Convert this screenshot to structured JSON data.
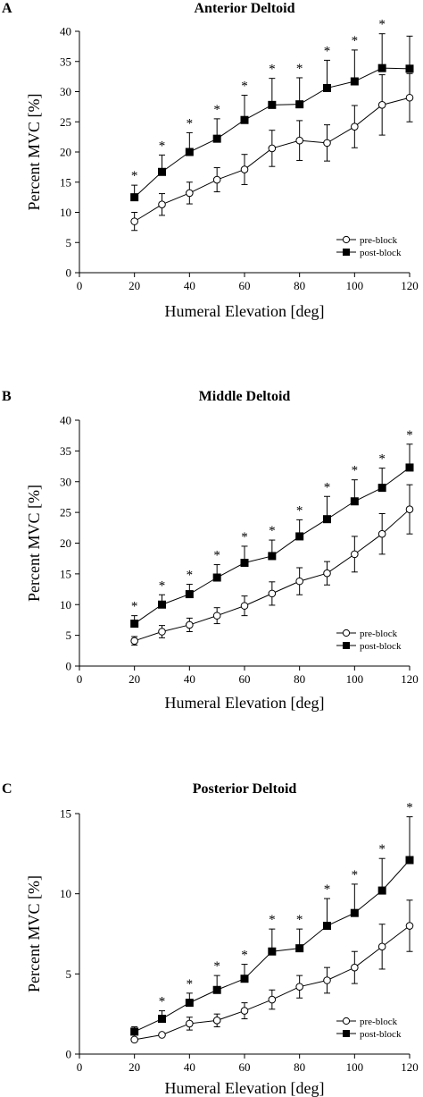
{
  "chart_data": [
    {
      "type": "line",
      "panel_label": "A",
      "title": "Anterior Deltoid",
      "xlabel": "Humeral Elevation [deg]",
      "ylabel": "Percent MVC [%]",
      "xlim": [
        0,
        120
      ],
      "ylim": [
        0,
        40
      ],
      "xticks": [
        0,
        20,
        40,
        60,
        80,
        100,
        120
      ],
      "yticks": [
        0,
        5,
        10,
        15,
        20,
        25,
        30,
        35,
        40
      ],
      "x": [
        20,
        30,
        40,
        50,
        60,
        70,
        80,
        90,
        100,
        110,
        120
      ],
      "series": [
        {
          "name": "pre-block",
          "marker": "open-circle",
          "values": [
            8.5,
            11.3,
            13.2,
            15.4,
            17.1,
            20.6,
            21.9,
            21.5,
            24.2,
            27.8,
            29.0
          ],
          "error": [
            1.5,
            1.8,
            1.8,
            2.0,
            2.5,
            3.0,
            3.3,
            3.0,
            3.5,
            5.0,
            4.0
          ]
        },
        {
          "name": "post-block",
          "marker": "filled-square",
          "values": [
            12.5,
            16.7,
            20.0,
            22.2,
            25.3,
            27.8,
            27.9,
            30.6,
            31.7,
            33.9,
            33.8
          ],
          "error": [
            2.0,
            2.8,
            3.2,
            3.3,
            4.1,
            4.4,
            4.4,
            4.6,
            5.2,
            5.7,
            5.4
          ]
        }
      ],
      "significance": [
        20,
        30,
        40,
        50,
        60,
        70,
        80,
        90,
        100,
        110
      ],
      "significance_mark": "*",
      "legend_position": "bottom-right"
    },
    {
      "type": "line",
      "panel_label": "B",
      "title": "Middle Deltoid",
      "xlabel": "Humeral Elevation [deg]",
      "ylabel": "Percent MVC [%]",
      "xlim": [
        0,
        120
      ],
      "ylim": [
        0,
        40
      ],
      "xticks": [
        0,
        20,
        40,
        60,
        80,
        100,
        120
      ],
      "yticks": [
        0,
        5,
        10,
        15,
        20,
        25,
        30,
        35,
        40
      ],
      "x": [
        20,
        30,
        40,
        50,
        60,
        70,
        80,
        90,
        100,
        110,
        120
      ],
      "series": [
        {
          "name": "pre-block",
          "marker": "open-circle",
          "values": [
            4.1,
            5.6,
            6.7,
            8.2,
            9.8,
            11.8,
            13.8,
            15.1,
            18.2,
            21.5,
            25.5
          ],
          "error": [
            0.7,
            1.0,
            1.1,
            1.3,
            1.6,
            1.9,
            2.2,
            1.9,
            2.9,
            3.3,
            4.0
          ]
        },
        {
          "name": "post-block",
          "marker": "filled-square",
          "values": [
            6.9,
            10.0,
            11.7,
            14.4,
            16.8,
            17.9,
            21.1,
            23.9,
            26.8,
            29.0,
            32.3
          ],
          "error": [
            1.3,
            1.6,
            1.6,
            2.1,
            2.7,
            2.6,
            2.7,
            3.7,
            3.5,
            3.2,
            3.8
          ]
        }
      ],
      "significance": [
        20,
        30,
        40,
        50,
        60,
        70,
        80,
        90,
        100,
        110,
        120
      ],
      "significance_mark": "*",
      "legend_position": "bottom-right"
    },
    {
      "type": "line",
      "panel_label": "C",
      "title": "Posterior Deltoid",
      "xlabel": "Humeral Elevation [deg]",
      "ylabel": "Percent MVC [%]",
      "xlim": [
        0,
        120
      ],
      "ylim": [
        0,
        15
      ],
      "xticks": [
        0,
        20,
        40,
        60,
        80,
        100,
        120
      ],
      "yticks": [
        0,
        5,
        10,
        15
      ],
      "x": [
        20,
        30,
        40,
        50,
        60,
        70,
        80,
        90,
        100,
        110,
        120
      ],
      "series": [
        {
          "name": "pre-block",
          "marker": "open-circle",
          "values": [
            0.9,
            1.2,
            1.9,
            2.1,
            2.7,
            3.4,
            4.2,
            4.6,
            5.4,
            6.7,
            8.0
          ],
          "error": [
            0.1,
            0.1,
            0.4,
            0.4,
            0.5,
            0.6,
            0.7,
            0.8,
            1.0,
            1.4,
            1.6
          ]
        },
        {
          "name": "post-block",
          "marker": "filled-square",
          "values": [
            1.4,
            2.2,
            3.2,
            4.0,
            4.7,
            6.4,
            6.6,
            8.0,
            8.8,
            10.2,
            12.1
          ],
          "error": [
            0.3,
            0.5,
            0.6,
            0.9,
            0.9,
            1.4,
            1.2,
            1.7,
            1.8,
            2.0,
            2.7
          ]
        }
      ],
      "significance": [
        30,
        40,
        50,
        60,
        70,
        80,
        90,
        100,
        110,
        120
      ],
      "significance_mark": "*",
      "legend_position": "bottom-right"
    }
  ]
}
